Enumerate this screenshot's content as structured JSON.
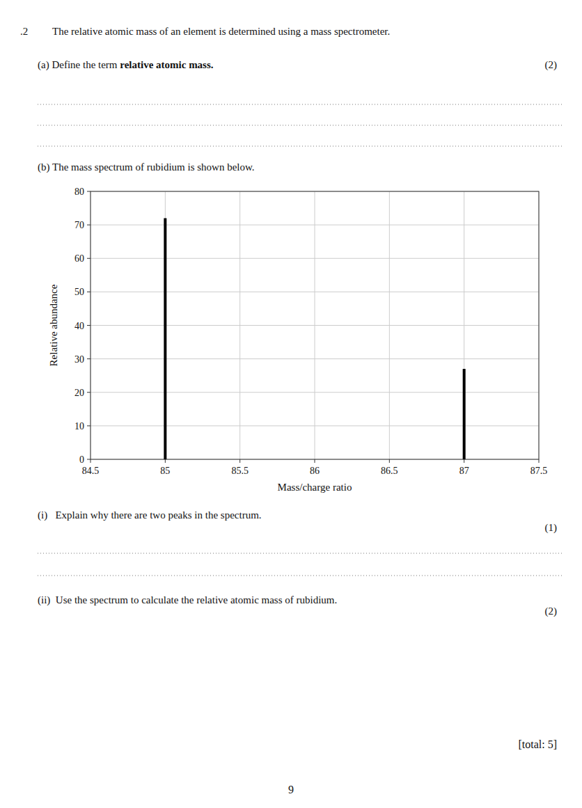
{
  "question_number": ".2",
  "question": "The relative atomic mass of an element is determined using a mass spectrometer.",
  "part_a": "(a) Define the term ",
  "part_a_term": "relative atomic mass.",
  "part_a_marks": "(2)",
  "part_b": "(b) The mass spectrum of rubidium is shown below.",
  "part_i": "(i)   Explain why there are two peaks in the spectrum.",
  "part_i_marks": "(1)",
  "part_ii": "(ii)  Use the spectrum to calculate the relative atomic mass of rubidium.",
  "part_ii_marks": "(2)",
  "total": "[total: 5]",
  "page_number": "9",
  "chart_data": {
    "type": "bar",
    "x": [
      85,
      87
    ],
    "values": [
      72,
      27
    ],
    "color": "#000000",
    "xlabel": "Mass/charge ratio",
    "ylabel": "Relative abundance",
    "xlim": [
      84.5,
      87.5
    ],
    "ylim": [
      0,
      80
    ],
    "xticks": [
      84.5,
      85,
      85.5,
      86,
      86.5,
      87,
      87.5
    ],
    "yticks": [
      0,
      10,
      20,
      30,
      40,
      50,
      60,
      70,
      80
    ],
    "grid": true
  }
}
